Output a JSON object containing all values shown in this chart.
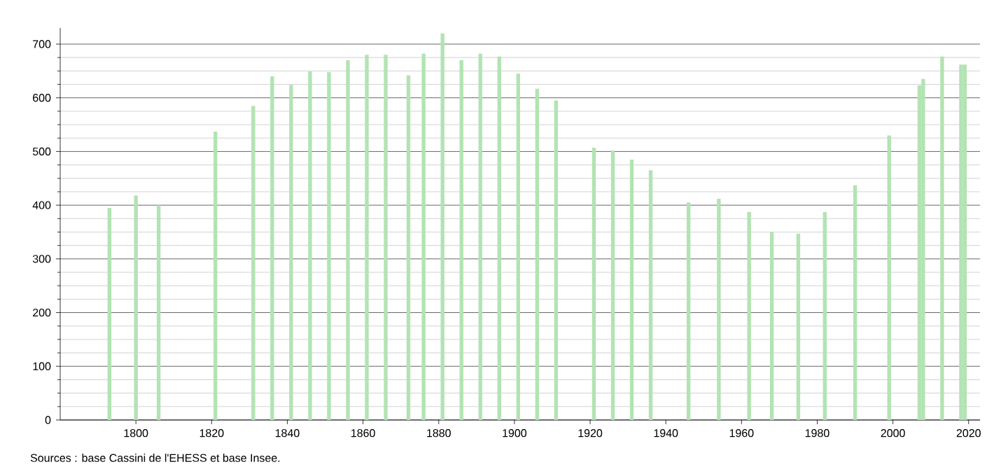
{
  "chart_data": {
    "type": "bar",
    "x": [
      1793,
      1800,
      1806,
      1821,
      1831,
      1836,
      1841,
      1846,
      1851,
      1856,
      1861,
      1866,
      1872,
      1876,
      1881,
      1886,
      1891,
      1896,
      1901,
      1906,
      1911,
      1921,
      1926,
      1931,
      1936,
      1946,
      1954,
      1962,
      1968,
      1975,
      1982,
      1990,
      1999,
      2007,
      2008,
      2013,
      2018,
      2019
    ],
    "values": [
      395,
      418,
      400,
      537,
      585,
      640,
      624,
      649,
      648,
      670,
      680,
      680,
      642,
      682,
      720,
      670,
      682,
      677,
      645,
      617,
      595,
      507,
      502,
      485,
      465,
      405,
      412,
      387,
      350,
      347,
      387,
      437,
      530,
      623,
      635,
      677,
      662,
      662
    ],
    "color": "#b3e3b3",
    "xlim": [
      1780,
      2023
    ],
    "ylim": [
      0,
      730
    ],
    "xticks": [
      1800,
      1820,
      1840,
      1860,
      1880,
      1900,
      1920,
      1940,
      1960,
      1980,
      2000,
      2020
    ],
    "yticks": [
      0,
      100,
      200,
      300,
      400,
      500,
      600,
      700
    ],
    "grid": "y",
    "annotations": [
      "Sources : base Cassini de l'EHESS et base Insee."
    ]
  }
}
